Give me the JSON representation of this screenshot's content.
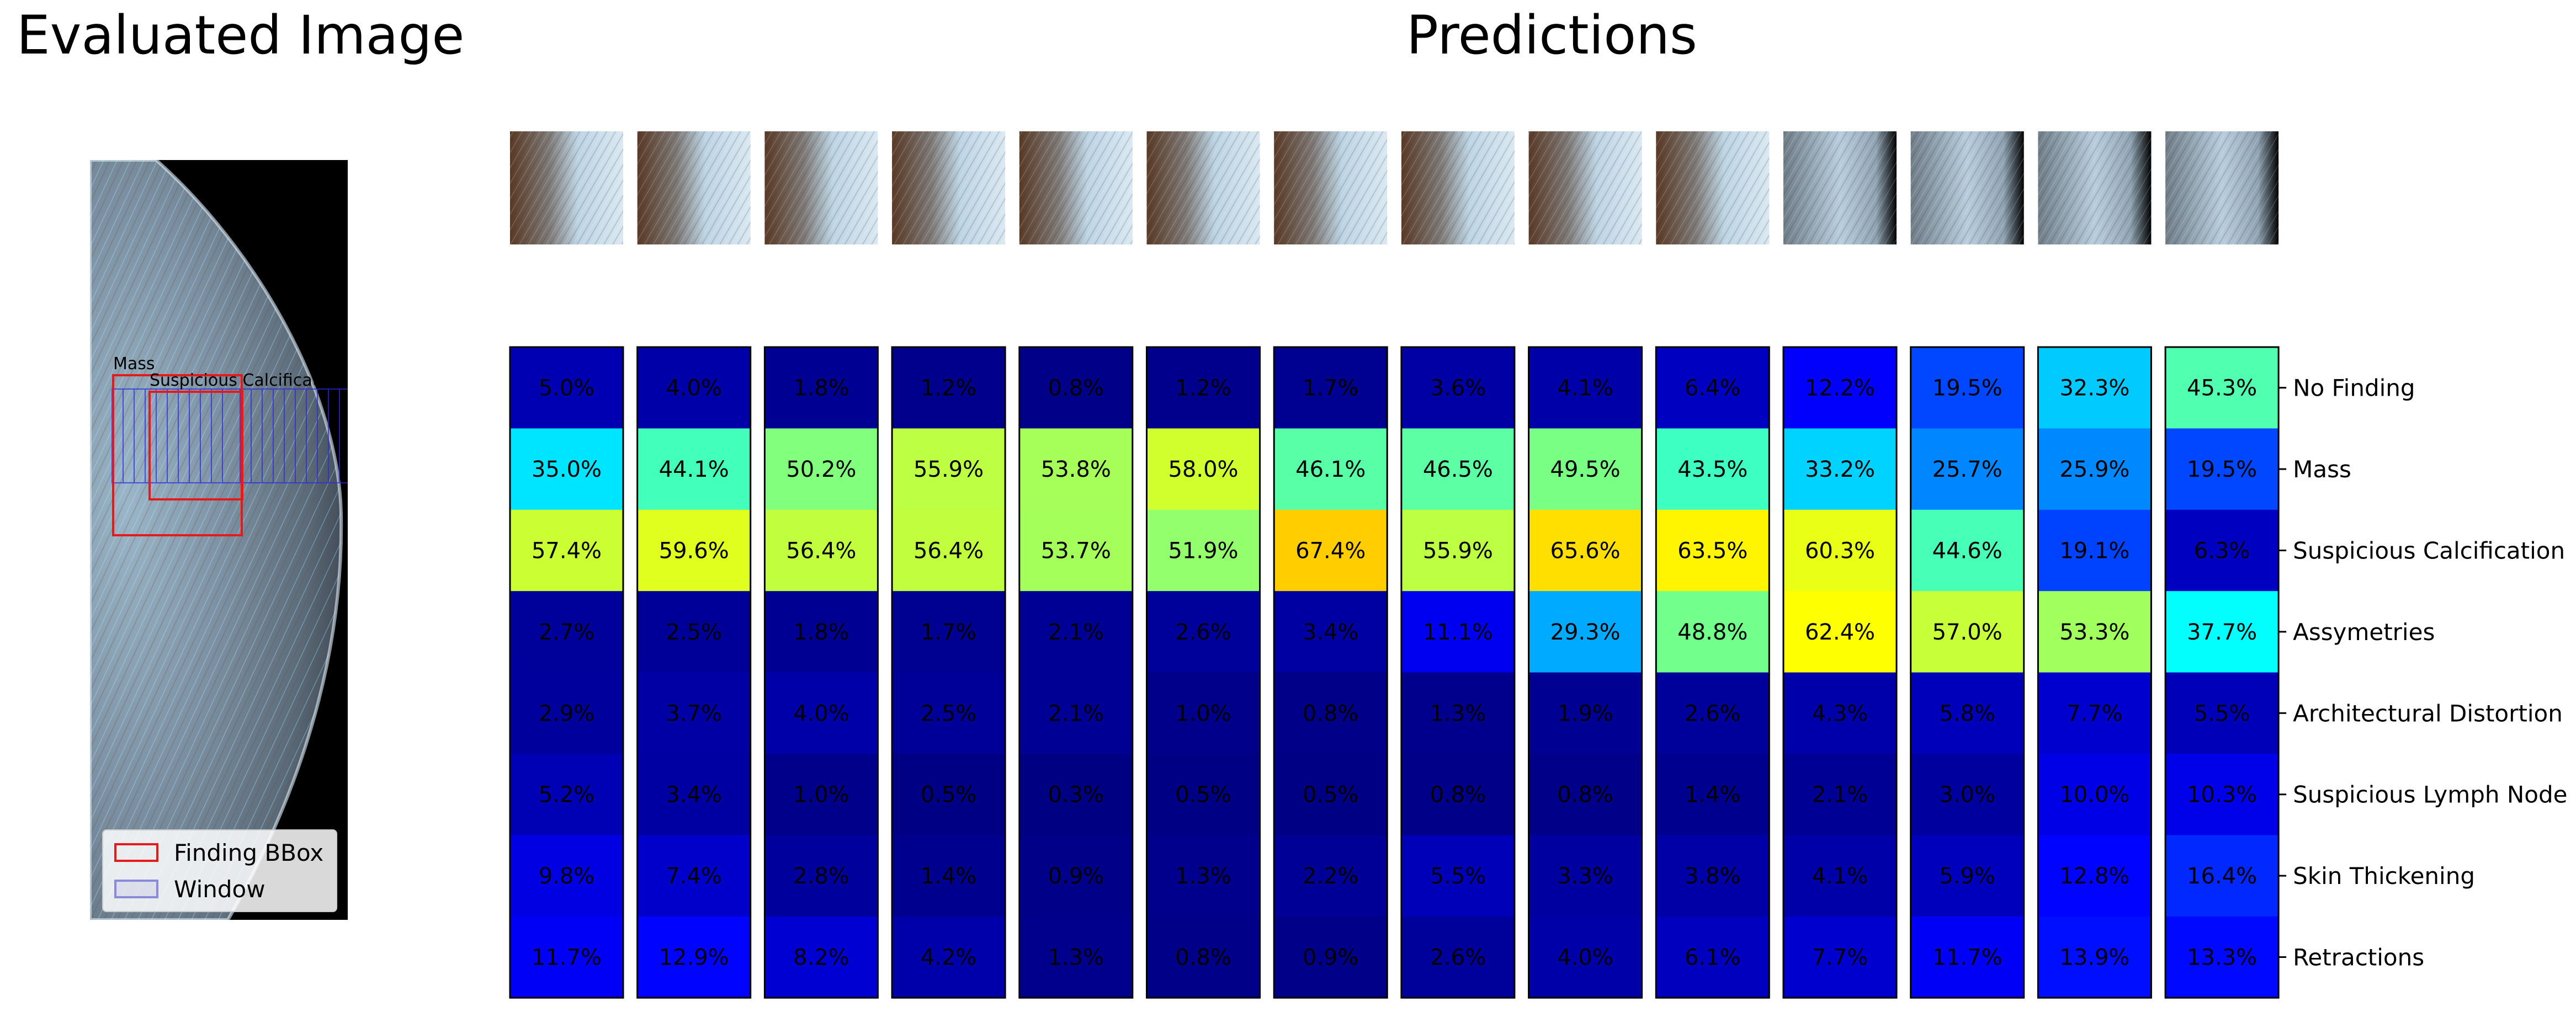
{
  "titles": {
    "left": "Evaluated Image",
    "right": "Predictions"
  },
  "legend": {
    "items": [
      {
        "label": "Finding BBox",
        "color": "#e6191b"
      },
      {
        "label": "Window",
        "color": "#8a8ad8"
      }
    ]
  },
  "bbox_labels": [
    "Mass",
    "Suspicious Calcification"
  ],
  "chart_data": {
    "type": "heatmap",
    "colormap": "jet",
    "value_range": [
      0,
      100
    ],
    "rows": [
      "No Finding",
      "Mass",
      "Suspicious Calcification",
      "Assymetries",
      "Architectural Distortion",
      "Suspicious Lymph Node",
      "Skin Thickening",
      "Retractions"
    ],
    "windows": 14,
    "values": [
      [
        5.0,
        35.0,
        57.4,
        2.7,
        2.9,
        5.2,
        9.8,
        11.7
      ],
      [
        4.0,
        44.1,
        59.6,
        2.5,
        3.7,
        3.4,
        7.4,
        12.9
      ],
      [
        1.8,
        50.2,
        56.4,
        1.8,
        4.0,
        1.0,
        2.8,
        8.2
      ],
      [
        1.2,
        55.9,
        56.4,
        1.7,
        2.5,
        0.5,
        1.4,
        4.2
      ],
      [
        0.8,
        53.8,
        53.7,
        2.1,
        2.1,
        0.3,
        0.9,
        1.3
      ],
      [
        1.2,
        58.0,
        51.9,
        2.6,
        1.0,
        0.5,
        1.3,
        0.8
      ],
      [
        1.7,
        46.1,
        67.4,
        3.4,
        0.8,
        0.5,
        2.2,
        0.9
      ],
      [
        3.6,
        46.5,
        55.9,
        11.1,
        1.3,
        0.8,
        5.5,
        2.6
      ],
      [
        4.1,
        49.5,
        65.6,
        29.3,
        1.9,
        0.8,
        3.3,
        4.0
      ],
      [
        6.4,
        43.5,
        63.5,
        48.8,
        2.6,
        1.4,
        3.8,
        6.1
      ],
      [
        12.2,
        33.2,
        60.3,
        62.4,
        4.3,
        2.1,
        4.1,
        7.7
      ],
      [
        19.5,
        25.7,
        44.6,
        57.0,
        5.8,
        3.0,
        5.9,
        11.7
      ],
      [
        32.3,
        25.9,
        19.1,
        53.3,
        7.7,
        10.0,
        12.8,
        13.9
      ],
      [
        45.3,
        19.5,
        6.3,
        37.7,
        5.5,
        10.3,
        16.4,
        13.3
      ]
    ]
  }
}
